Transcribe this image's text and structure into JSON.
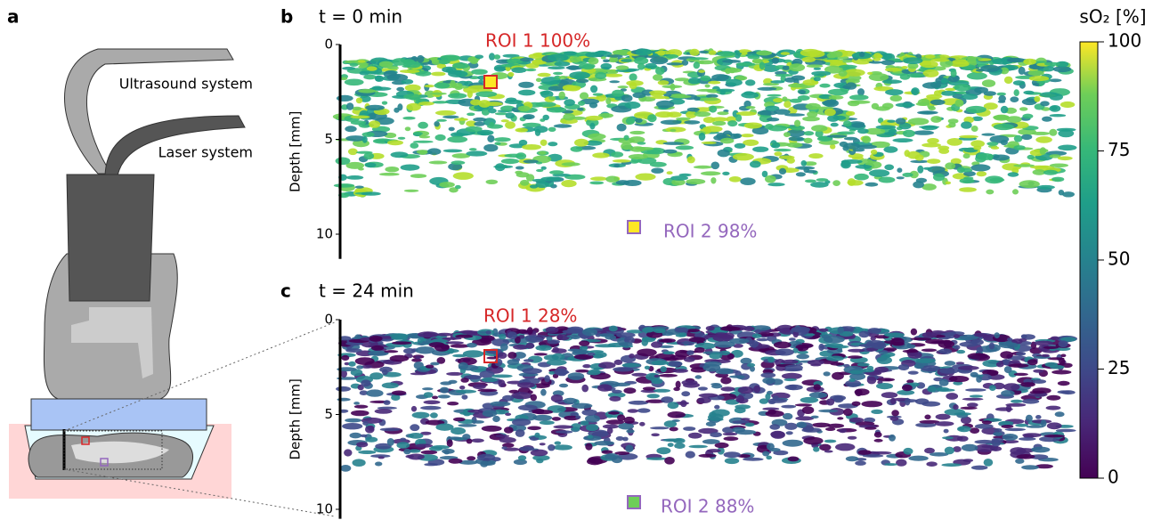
{
  "panel_a": {
    "label": "a",
    "ultrasound": "Ultrasound system",
    "laser": "Laser system"
  },
  "panel_b": {
    "label": "b",
    "title": "t = 0 min",
    "roi1": "ROI 1  100%",
    "roi2": "ROI 2  98%",
    "ylabel": "Depth [mm]",
    "ylim": [
      0,
      11.3
    ],
    "yticks": [
      0,
      5,
      10
    ]
  },
  "panel_c": {
    "label": "c",
    "title": "t = 24 min",
    "roi1": "ROI 1  28%",
    "roi2": "ROI 2  88%",
    "ylabel": "Depth [mm]",
    "ylim": [
      0,
      10.5
    ],
    "yticks": [
      0,
      5,
      10
    ]
  },
  "colorbar": {
    "label": "sO₂ [%]",
    "lim": [
      0,
      100
    ],
    "ticks": [
      0,
      25,
      50,
      75,
      100
    ]
  }
}
